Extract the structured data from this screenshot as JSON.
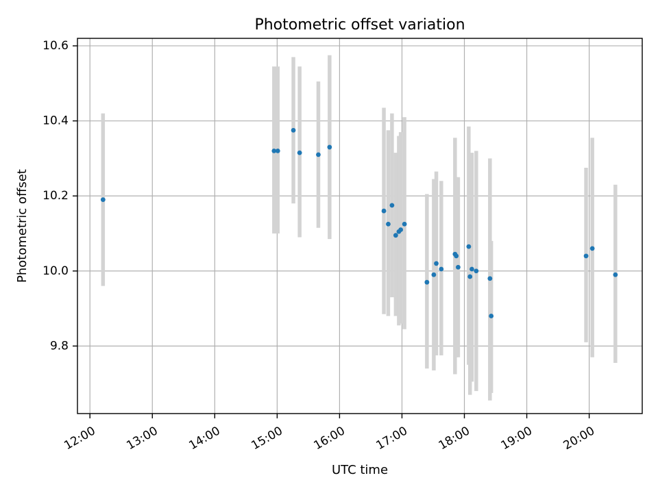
{
  "chart_data": {
    "type": "scatter",
    "title": "Photometric offset variation",
    "xlabel": "UTC time",
    "ylabel": "Photometric offset",
    "x_unit": "hours UTC",
    "xlim": [
      11.8,
      20.85
    ],
    "ylim": [
      9.62,
      10.62
    ],
    "x_ticks": [
      {
        "value": 12,
        "label": "12:00"
      },
      {
        "value": 13,
        "label": "13:00"
      },
      {
        "value": 14,
        "label": "14:00"
      },
      {
        "value": 15,
        "label": "15:00"
      },
      {
        "value": 16,
        "label": "16:00"
      },
      {
        "value": 17,
        "label": "17:00"
      },
      {
        "value": 18,
        "label": "18:00"
      },
      {
        "value": 19,
        "label": "19:00"
      },
      {
        "value": 20,
        "label": "20:00"
      }
    ],
    "y_ticks": [
      {
        "value": 9.8,
        "label": "9.8"
      },
      {
        "value": 10.0,
        "label": "10.0"
      },
      {
        "value": 10.2,
        "label": "10.2"
      },
      {
        "value": 10.4,
        "label": "10.4"
      },
      {
        "value": 10.6,
        "label": "10.6"
      }
    ],
    "grid": true,
    "colors": {
      "point": "#1f77b4",
      "errorbar": "#d3d3d3",
      "grid": "#b0b0b0",
      "axis": "#000000"
    },
    "series": [
      {
        "points": [
          {
            "x": 12.21,
            "y": 10.19,
            "ylow": 9.96,
            "yhigh": 10.42
          },
          {
            "x": 14.95,
            "y": 10.32,
            "ylow": 10.1,
            "yhigh": 10.545
          },
          {
            "x": 15.01,
            "y": 10.32,
            "ylow": 10.1,
            "yhigh": 10.545
          },
          {
            "x": 15.26,
            "y": 10.375,
            "ylow": 10.18,
            "yhigh": 10.57
          },
          {
            "x": 15.36,
            "y": 10.315,
            "ylow": 10.09,
            "yhigh": 10.545
          },
          {
            "x": 15.66,
            "y": 10.31,
            "ylow": 10.115,
            "yhigh": 10.505
          },
          {
            "x": 15.84,
            "y": 10.33,
            "ylow": 10.085,
            "yhigh": 10.575
          },
          {
            "x": 16.71,
            "y": 10.16,
            "ylow": 9.885,
            "yhigh": 10.435
          },
          {
            "x": 16.78,
            "y": 10.125,
            "ylow": 9.88,
            "yhigh": 10.375
          },
          {
            "x": 16.84,
            "y": 10.175,
            "ylow": 9.93,
            "yhigh": 10.42
          },
          {
            "x": 16.9,
            "y": 10.095,
            "ylow": 9.88,
            "yhigh": 10.315
          },
          {
            "x": 16.95,
            "y": 10.105,
            "ylow": 9.855,
            "yhigh": 10.36
          },
          {
            "x": 16.98,
            "y": 10.11,
            "ylow": 9.86,
            "yhigh": 10.37
          },
          {
            "x": 17.04,
            "y": 10.125,
            "ylow": 9.845,
            "yhigh": 10.41
          },
          {
            "x": 17.4,
            "y": 9.97,
            "ylow": 9.74,
            "yhigh": 10.205
          },
          {
            "x": 17.51,
            "y": 9.99,
            "ylow": 9.735,
            "yhigh": 10.245
          },
          {
            "x": 17.55,
            "y": 10.02,
            "ylow": 9.775,
            "yhigh": 10.265
          },
          {
            "x": 17.63,
            "y": 10.005,
            "ylow": 9.775,
            "yhigh": 10.24
          },
          {
            "x": 17.85,
            "y": 10.045,
            "ylow": 9.725,
            "yhigh": 10.355
          },
          {
            "x": 17.87,
            "y": 10.04,
            "ylow": 9.77,
            "yhigh": 10.25
          },
          {
            "x": 17.9,
            "y": 10.01,
            "ylow": 9.77,
            "yhigh": 10.25
          },
          {
            "x": 18.07,
            "y": 10.065,
            "ylow": 9.75,
            "yhigh": 10.385
          },
          {
            "x": 18.09,
            "y": 9.985,
            "ylow": 9.67,
            "yhigh": 10.31
          },
          {
            "x": 18.12,
            "y": 10.005,
            "ylow": 9.705,
            "yhigh": 10.315
          },
          {
            "x": 18.19,
            "y": 10.0,
            "ylow": 9.68,
            "yhigh": 10.32
          },
          {
            "x": 18.41,
            "y": 9.98,
            "ylow": 9.655,
            "yhigh": 10.3
          },
          {
            "x": 18.43,
            "y": 9.88,
            "ylow": 9.675,
            "yhigh": 10.08
          },
          {
            "x": 19.95,
            "y": 10.04,
            "ylow": 9.81,
            "yhigh": 10.275
          },
          {
            "x": 20.05,
            "y": 10.06,
            "ylow": 9.77,
            "yhigh": 10.355
          },
          {
            "x": 20.42,
            "y": 9.99,
            "ylow": 9.755,
            "yhigh": 10.23
          }
        ]
      }
    ]
  }
}
